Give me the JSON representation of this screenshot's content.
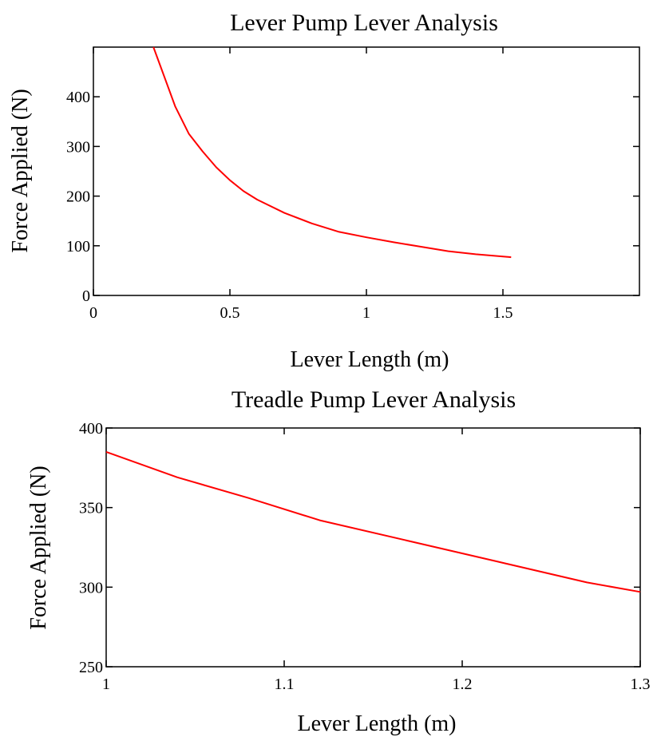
{
  "chart_data": [
    {
      "type": "line",
      "title": "Lever Pump Lever Analysis",
      "xlabel": "Lever Length (m)",
      "ylabel": "Force Applied (N)",
      "xlim": [
        0,
        2
      ],
      "ylim": [
        0,
        500
      ],
      "xticks": [
        "0",
        "0.5",
        "1",
        "1.5"
      ],
      "yticks": [
        "0",
        "100",
        "200",
        "300",
        "400"
      ],
      "grid": false,
      "series": [
        {
          "color": "#ff0000",
          "x": [
            0.22,
            0.25,
            0.3,
            0.35,
            0.4,
            0.45,
            0.5,
            0.55,
            0.6,
            0.7,
            0.8,
            0.9,
            1.0,
            1.1,
            1.2,
            1.3,
            1.4,
            1.53
          ],
          "y": [
            500,
            455,
            380,
            325,
            290,
            258,
            232,
            210,
            193,
            166,
            145,
            128,
            117,
            107,
            98,
            89,
            83,
            77
          ]
        }
      ]
    },
    {
      "type": "line",
      "title": "Treadle Pump Lever Analysis",
      "xlabel": "Lever Length (m)",
      "ylabel": "Force Applied (N)",
      "xlim": [
        1,
        1.3
      ],
      "ylim": [
        250,
        400
      ],
      "xticks": [
        "1",
        "1.1",
        "1.2",
        "1.3"
      ],
      "yticks": [
        "250",
        "300",
        "350",
        "400"
      ],
      "grid": false,
      "series": [
        {
          "color": "#ff0000",
          "x": [
            1.0,
            1.04,
            1.08,
            1.12,
            1.17,
            1.22,
            1.27,
            1.3
          ],
          "y": [
            385,
            369,
            356,
            342,
            329,
            316,
            303,
            297
          ]
        }
      ]
    }
  ]
}
